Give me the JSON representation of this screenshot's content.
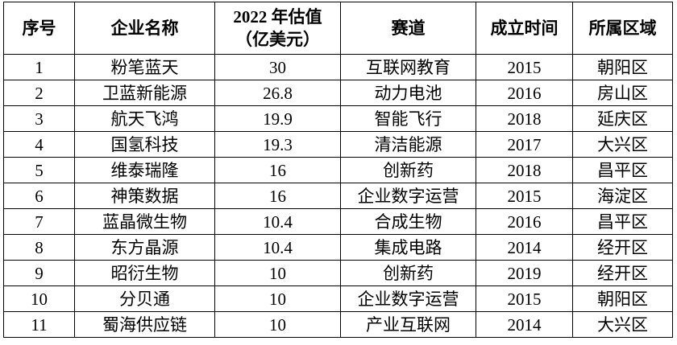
{
  "table": {
    "header": [
      "序号",
      "企业名称",
      [
        "2022 年估值",
        "（亿美元）"
      ],
      "赛道",
      "成立时间",
      "所属区域"
    ],
    "rows": [
      [
        "1",
        "粉笔蓝天",
        "30",
        "互联网教育",
        "2015",
        "朝阳区"
      ],
      [
        "2",
        "卫蓝新能源",
        "26.8",
        "动力电池",
        "2016",
        "房山区"
      ],
      [
        "3",
        "航天飞鸿",
        "19.9",
        "智能飞行",
        "2018",
        "延庆区"
      ],
      [
        "4",
        "国氢科技",
        "19.3",
        "清洁能源",
        "2017",
        "大兴区"
      ],
      [
        "5",
        "维泰瑞隆",
        "16",
        "创新药",
        "2018",
        "昌平区"
      ],
      [
        "6",
        "神策数据",
        "16",
        "企业数字运营",
        "2015",
        "海淀区"
      ],
      [
        "7",
        "蓝晶微生物",
        "10.4",
        "合成生物",
        "2016",
        "昌平区"
      ],
      [
        "8",
        "东方晶源",
        "10.4",
        "集成电路",
        "2014",
        "经开区"
      ],
      [
        "9",
        "昭衍生物",
        "10",
        "创新药",
        "2019",
        "经开区"
      ],
      [
        "10",
        "分贝通",
        "10",
        "企业数字运营",
        "2015",
        "朝阳区"
      ],
      [
        "11",
        "蜀海供应链",
        "10",
        "产业互联网",
        "2014",
        "大兴区"
      ]
    ]
  }
}
